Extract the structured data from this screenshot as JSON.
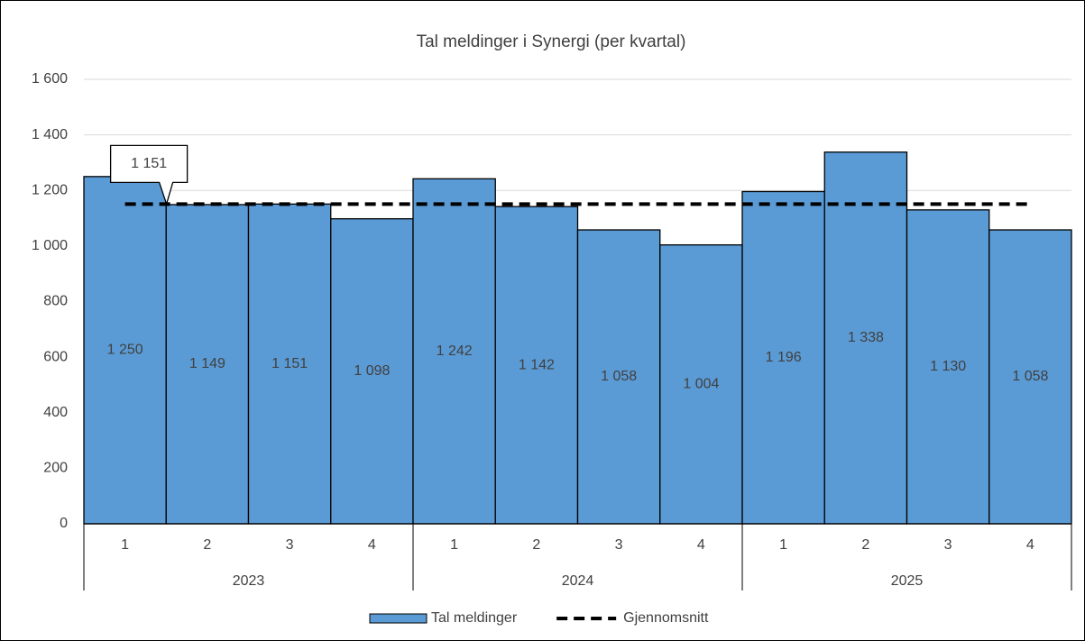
{
  "chart_data": {
    "type": "bar",
    "title": "Tal meldinger i Synergi (per kvartal)",
    "categories": [
      "1",
      "2",
      "3",
      "4",
      "1",
      "2",
      "3",
      "4",
      "1",
      "2",
      "3",
      "4"
    ],
    "groups": [
      "2023",
      "2024",
      "2025"
    ],
    "series": [
      {
        "name": "Tal meldinger",
        "type": "bar",
        "color": "#5b9bd5",
        "values": [
          1250,
          1149,
          1151,
          1098,
          1242,
          1142,
          1058,
          1004,
          1196,
          1338,
          1130,
          1058
        ],
        "value_labels": [
          "1 250",
          "1 149",
          "1 151",
          "1 098",
          "1 242",
          "1 142",
          "1 058",
          "1 004",
          "1 196",
          "1 338",
          "1 130",
          "1 058"
        ]
      },
      {
        "name": "Gjennomsnitt",
        "type": "line",
        "color": "#000000",
        "dashed": true,
        "values": [
          1151,
          1151,
          1151,
          1151,
          1151,
          1151,
          1151,
          1151,
          1151,
          1151,
          1151,
          1151
        ],
        "value_labels": [
          "1 151",
          null,
          null,
          null,
          null,
          null,
          null,
          null,
          null,
          null,
          null,
          null
        ]
      }
    ],
    "ylim": [
      0,
      1600
    ],
    "yticks": [
      0,
      200,
      400,
      600,
      800,
      {
        "value": 1000,
        "label": "1 000"
      },
      {
        "value": 1200,
        "label": "1 200"
      },
      {
        "value": 1400,
        "label": "1 400"
      },
      {
        "value": 1600,
        "label": "1 600"
      }
    ],
    "grid": true,
    "legend": "bottom"
  }
}
